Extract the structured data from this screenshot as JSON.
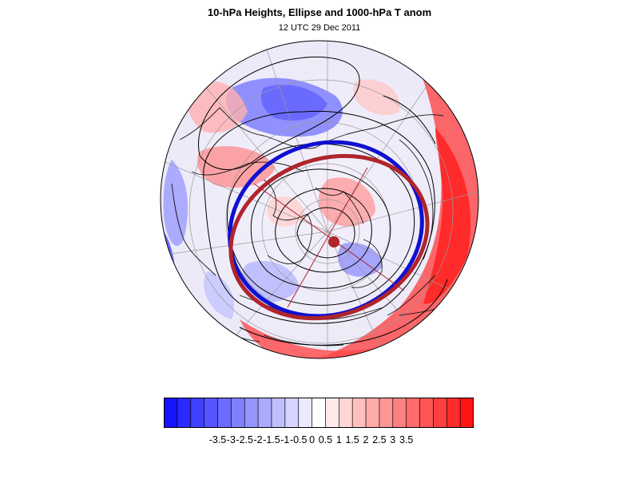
{
  "title": "10-hPa Heights, Ellipse and 1000-hPa T anom",
  "subtitle": "12 UTC 29 Dec 2011",
  "colorbar": {
    "colors": [
      "#1414ff",
      "#2a2aff",
      "#4040ff",
      "#5555ff",
      "#6b6bff",
      "#8080ff",
      "#9595ff",
      "#aaaaff",
      "#bfbfff",
      "#d5d5ff",
      "#eaeaff",
      "#ffffff",
      "#ffeaea",
      "#ffd5d5",
      "#ffbfbf",
      "#ffaaaa",
      "#ff9595",
      "#ff8080",
      "#ff6b6b",
      "#ff5555",
      "#ff4040",
      "#ff2a2a",
      "#ff1414"
    ],
    "labels": [
      "-3.5",
      "-3",
      "-2.5",
      "-2",
      "-1.5",
      "-1",
      "-0.5",
      "0",
      "0.5",
      "1",
      "1.5",
      "2",
      "2.5",
      "3",
      "3.5"
    ]
  },
  "map": {
    "projection": "polar-stereographic-north",
    "ellipse_colors": {
      "blue": "#1010d0",
      "red": "#b0242c"
    },
    "marker_color": "#b0242c",
    "contour_color": "#000000"
  }
}
